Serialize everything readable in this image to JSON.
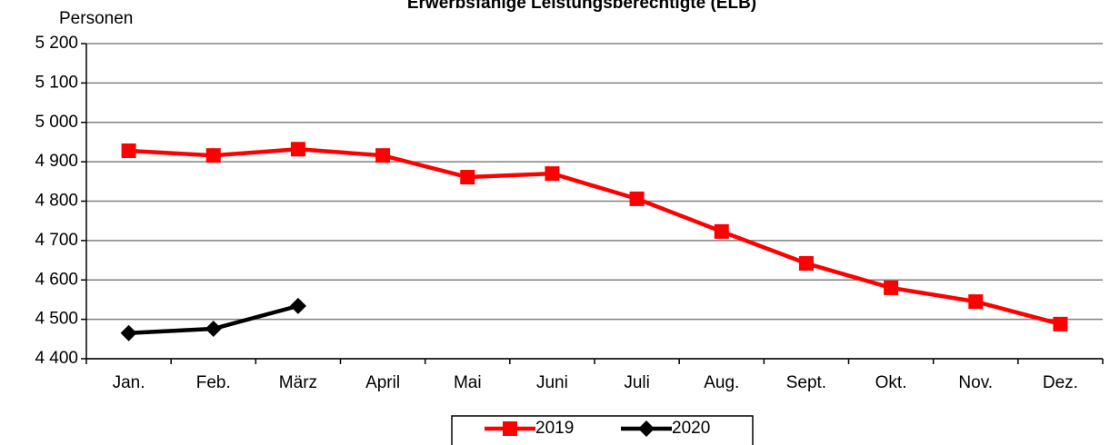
{
  "chart_data": {
    "type": "line",
    "title": "Erwerbsfähige Leistungsberechtigte (ELB)",
    "y_label": "Personen",
    "categories": [
      "Jan.",
      "Feb.",
      "März",
      "April",
      "Mai",
      "Juni",
      "Juli",
      "Aug.",
      "Sept.",
      "Okt.",
      "Nov.",
      "Dez."
    ],
    "series": [
      {
        "name": "2019",
        "color": "#ff0000",
        "marker": "square",
        "values": [
          4928,
          4916,
          4932,
          4916,
          4861,
          4870,
          4806,
          4723,
          4642,
          4580,
          4545,
          4488
        ]
      },
      {
        "name": "2020",
        "color": "#000000",
        "marker": "diamond",
        "values": [
          4465,
          4476,
          4534,
          null,
          null,
          null,
          null,
          null,
          null,
          null,
          null,
          null
        ]
      }
    ],
    "ylim": [
      4400,
      5200
    ],
    "yticks": [
      {
        "value": 4400,
        "label": "4 400"
      },
      {
        "value": 4500,
        "label": "4 500"
      },
      {
        "value": 4600,
        "label": "4 600"
      },
      {
        "value": 4700,
        "label": "4 700"
      },
      {
        "value": 4800,
        "label": "4 800"
      },
      {
        "value": 4900,
        "label": "4 900"
      },
      {
        "value": 5000,
        "label": "5 000"
      },
      {
        "value": 5100,
        "label": "5 100"
      },
      {
        "value": 5200,
        "label": "5 200"
      }
    ],
    "grid": true,
    "legend": "bottom"
  }
}
